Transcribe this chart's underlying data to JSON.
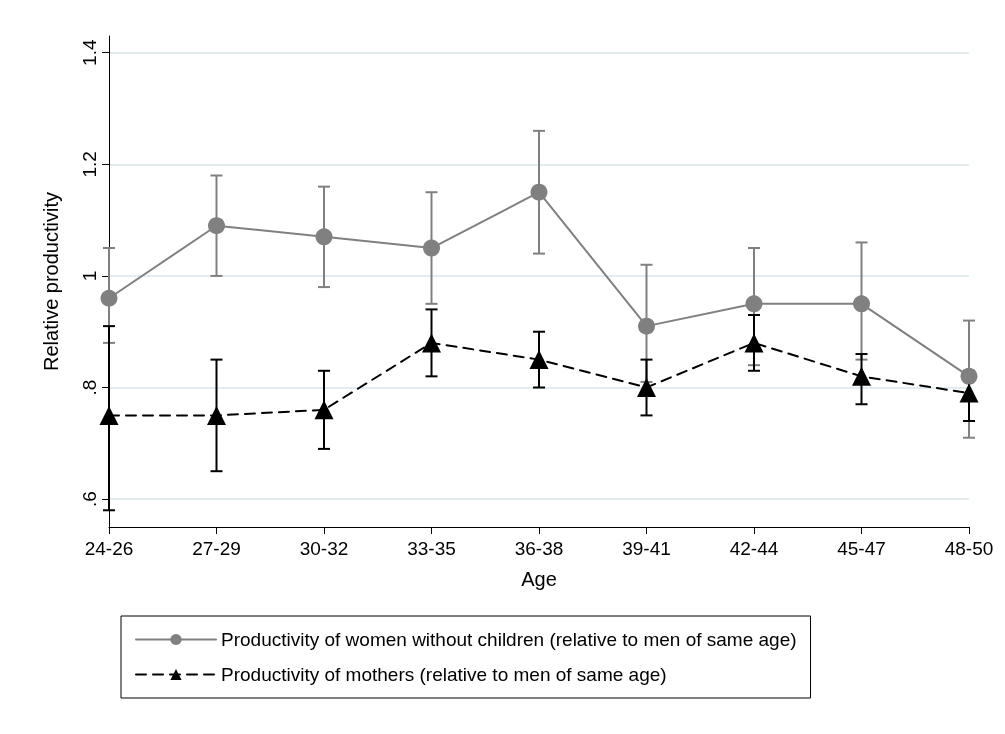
{
  "chart_data": {
    "type": "line",
    "xlabel": "Age",
    "ylabel": "Relative productivity",
    "categories": [
      "24-26",
      "27-29",
      "30-32",
      "33-35",
      "36-38",
      "39-41",
      "42-44",
      "45-47",
      "48-50"
    ],
    "series": [
      {
        "name": "Productivity of women without children (relative to men of same age)",
        "color": "#808080",
        "marker": "circle",
        "line_style": "solid",
        "values": [
          0.96,
          1.09,
          1.07,
          1.05,
          1.15,
          0.91,
          0.95,
          0.95,
          0.82
        ],
        "errors": [
          [
            0.88,
            1.05
          ],
          [
            1.0,
            1.18
          ],
          [
            0.98,
            1.16
          ],
          [
            0.95,
            1.15
          ],
          [
            1.04,
            1.26
          ],
          [
            0.81,
            1.02
          ],
          [
            0.84,
            1.05
          ],
          [
            0.85,
            1.06
          ],
          [
            0.71,
            0.92
          ]
        ]
      },
      {
        "name": "Productivity of mothers (relative to men of same age)",
        "color": "#000000",
        "marker": "triangle",
        "line_style": "dashed",
        "values": [
          0.75,
          0.75,
          0.76,
          0.88,
          0.85,
          0.8,
          0.88,
          0.82,
          0.79
        ],
        "errors": [
          [
            0.58,
            0.91
          ],
          [
            0.65,
            0.85
          ],
          [
            0.69,
            0.83
          ],
          [
            0.82,
            0.94
          ],
          [
            0.8,
            0.9
          ],
          [
            0.75,
            0.85
          ],
          [
            0.83,
            0.93
          ],
          [
            0.77,
            0.86
          ],
          [
            0.74,
            0.83
          ]
        ]
      }
    ],
    "ylim": [
      0.55,
      1.43
    ],
    "yticks": [
      {
        "value": 0.6,
        "label": ".6"
      },
      {
        "value": 0.8,
        "label": ".8"
      },
      1,
      1.2,
      1.4
    ],
    "grid": "y",
    "legend": "bottom"
  }
}
